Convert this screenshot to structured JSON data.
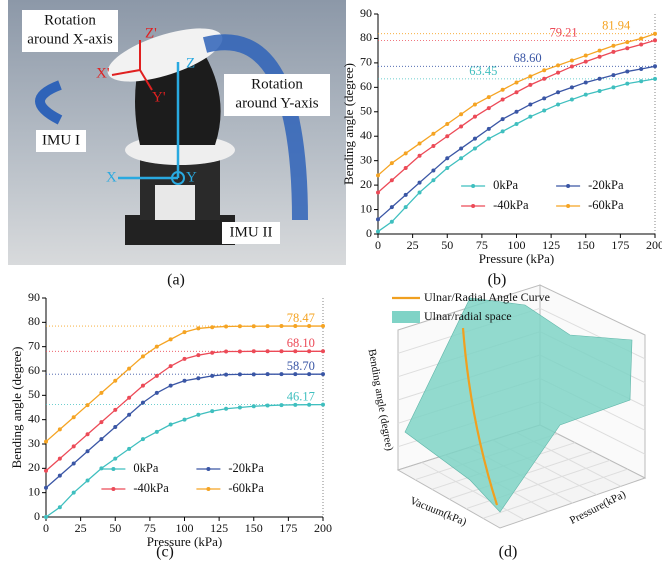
{
  "panel_labels": [
    "(a)",
    "(b)",
    "(c)",
    "(d)"
  ],
  "photo": {
    "rotation_x": [
      "Rotation",
      "around X-axis"
    ],
    "rotation_y": [
      "Rotation",
      "around Y-axis"
    ],
    "imu1": "IMU I",
    "imu2": "IMU II",
    "axes_prime": [
      "Z'",
      "X'",
      "Y'"
    ],
    "axes": [
      "Z",
      "X",
      "Y"
    ]
  },
  "chart_data": [
    {
      "type": "line",
      "xlabel": "Pressure (kPa)",
      "ylabel": "Bending angle (degree)",
      "xlim": [
        0,
        200
      ],
      "xticks": [
        0,
        25,
        50,
        75,
        100,
        125,
        150,
        175,
        200
      ],
      "ylim": [
        0,
        90
      ],
      "yticks": [
        0,
        10,
        20,
        30,
        40,
        50,
        60,
        70,
        80,
        90
      ],
      "legend": "lower center",
      "x": [
        0,
        10,
        20,
        30,
        40,
        50,
        60,
        70,
        80,
        90,
        100,
        110,
        120,
        130,
        140,
        150,
        160,
        170,
        180,
        190,
        200
      ],
      "series": [
        {
          "name": "0kPa",
          "color": "#3fbfbf",
          "values": [
            1,
            5,
            11,
            17,
            22,
            27,
            31,
            35,
            39,
            42,
            45,
            48,
            50.5,
            53,
            55,
            57,
            58.5,
            60,
            61.5,
            62.5,
            63.45
          ],
          "value_labels": [
            null,
            null,
            null,
            null,
            null,
            null,
            null,
            null,
            null,
            null,
            null,
            null,
            null,
            null,
            null,
            null,
            null,
            null,
            null,
            null,
            "63.45"
          ]
        },
        {
          "name": "-20kPa",
          "color": "#3a56a5",
          "values": [
            6,
            11,
            16,
            21,
            26,
            31,
            35,
            39,
            43,
            47,
            50,
            53,
            55.5,
            58,
            60,
            62,
            63.5,
            65,
            66.5,
            67.5,
            68.6
          ],
          "value_labels": [
            null,
            null,
            null,
            null,
            null,
            null,
            null,
            null,
            null,
            null,
            null,
            null,
            null,
            null,
            null,
            null,
            null,
            null,
            null,
            null,
            "68.60"
          ]
        },
        {
          "name": "-40kPa",
          "color": "#ec4a57",
          "values": [
            17,
            22,
            27,
            32,
            36,
            40,
            44,
            48,
            51.5,
            55,
            58,
            61,
            63.5,
            66,
            68.5,
            70.5,
            72.5,
            74.5,
            76,
            77.5,
            79.21
          ],
          "value_labels": [
            null,
            null,
            null,
            null,
            null,
            null,
            null,
            null,
            null,
            null,
            null,
            null,
            null,
            null,
            null,
            null,
            null,
            null,
            null,
            null,
            "79.21"
          ]
        },
        {
          "name": "-60kPa",
          "color": "#f5a423",
          "values": [
            24,
            29,
            33,
            37,
            41,
            45,
            49,
            53,
            56,
            59,
            62,
            64.5,
            67,
            69,
            71,
            73,
            75,
            77,
            78.5,
            80,
            81.94
          ],
          "value_labels": [
            null,
            null,
            null,
            null,
            null,
            null,
            null,
            null,
            null,
            null,
            null,
            null,
            null,
            null,
            null,
            null,
            null,
            null,
            null,
            null,
            "81.94"
          ]
        }
      ]
    },
    {
      "type": "line",
      "xlabel": "Pressure (kPa)",
      "ylabel": "Bending angle (degree)",
      "xlim": [
        0,
        200
      ],
      "xticks": [
        0,
        25,
        50,
        75,
        100,
        125,
        150,
        175,
        200
      ],
      "ylim": [
        0,
        90
      ],
      "yticks": [
        0,
        10,
        20,
        30,
        40,
        50,
        60,
        70,
        80,
        90
      ],
      "legend": "lower center",
      "x": [
        0,
        10,
        20,
        30,
        40,
        50,
        60,
        70,
        80,
        90,
        100,
        110,
        120,
        130,
        140,
        150,
        160,
        170,
        180,
        190,
        200
      ],
      "series": [
        {
          "name": "0kPa",
          "color": "#3fbfbf",
          "values": [
            0,
            4,
            10,
            15,
            20,
            24,
            28,
            32,
            35,
            38,
            40,
            42,
            43.5,
            44.5,
            45,
            45.5,
            45.8,
            46,
            46.1,
            46.15,
            46.17
          ],
          "value_labels": [
            null,
            null,
            null,
            null,
            null,
            null,
            null,
            null,
            null,
            null,
            null,
            null,
            null,
            null,
            null,
            null,
            null,
            null,
            null,
            null,
            "46.17"
          ]
        },
        {
          "name": "-20kPa",
          "color": "#3a56a5",
          "values": [
            12,
            17,
            22,
            27,
            32,
            37,
            42,
            47,
            51,
            54,
            56,
            57,
            58,
            58.5,
            58.6,
            58.6,
            58.7,
            58.7,
            58.7,
            58.7,
            58.7
          ],
          "value_labels": [
            null,
            null,
            null,
            null,
            null,
            null,
            null,
            null,
            null,
            null,
            null,
            null,
            null,
            null,
            null,
            null,
            null,
            null,
            null,
            null,
            "58.70"
          ]
        },
        {
          "name": "-40kPa",
          "color": "#ec4a57",
          "values": [
            19,
            24,
            29,
            34,
            39,
            44,
            49,
            54,
            58,
            62,
            65,
            66.5,
            67.5,
            68,
            68,
            68.1,
            68.1,
            68.1,
            68.1,
            68.1,
            68.1
          ],
          "value_labels": [
            null,
            null,
            null,
            null,
            null,
            null,
            null,
            null,
            null,
            null,
            null,
            null,
            null,
            null,
            null,
            null,
            null,
            null,
            null,
            null,
            "68.10"
          ]
        },
        {
          "name": "-60kPa",
          "color": "#f5a423",
          "values": [
            31,
            36,
            41,
            46,
            51,
            56,
            61,
            66,
            70,
            73,
            76,
            77.5,
            78,
            78.3,
            78.4,
            78.4,
            78.45,
            78.47,
            78.47,
            78.47,
            78.47
          ],
          "value_labels": [
            null,
            null,
            null,
            null,
            null,
            null,
            null,
            null,
            null,
            null,
            null,
            null,
            null,
            null,
            null,
            null,
            null,
            null,
            null,
            null,
            "78.47"
          ]
        }
      ]
    },
    {
      "type": "surface3d",
      "zlabel": "Bending angle (degree)",
      "xlabel": "Vacuum(kPa)",
      "ylabel": "Pressure(kPa)",
      "series": [
        {
          "name": "Ulnar/Radial Angle Curve",
          "color": "#f0a020"
        },
        {
          "name": "Ulnar/radial space",
          "color": "#7fd3c6"
        }
      ]
    }
  ]
}
